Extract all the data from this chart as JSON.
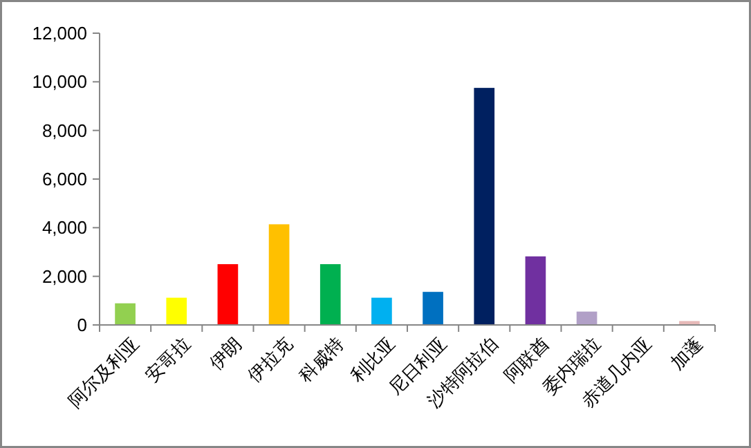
{
  "chart_data": {
    "type": "bar",
    "categories": [
      "阿尔及利亚",
      "安哥拉",
      "伊朗",
      "伊拉克",
      "科威特",
      "利比亚",
      "尼日利亚",
      "沙特阿拉伯",
      "阿联酋",
      "委内瑞拉",
      "赤道几内亚",
      "加蓬"
    ],
    "values": [
      890,
      1120,
      2500,
      4140,
      2500,
      1120,
      1360,
      9750,
      2820,
      550,
      0,
      160
    ],
    "colors": [
      "#92d050",
      "#ffff00",
      "#ff0000",
      "#ffc000",
      "#00b050",
      "#00b0f0",
      "#0070c0",
      "#002060",
      "#7030a0",
      "#b1a0c7",
      "#8db4e2",
      "#e6b9b8"
    ],
    "ylim": [
      0,
      12000
    ],
    "yticks": [
      0,
      {
        "value": 2000,
        "label": "2,000"
      },
      {
        "value": 4000,
        "label": "4,000"
      },
      {
        "value": 6000,
        "label": "6,000"
      },
      {
        "value": 8000,
        "label": "8,000"
      },
      {
        "value": 10000,
        "label": "10,000"
      },
      {
        "value": 12000,
        "label": "12,000"
      }
    ],
    "grid": false
  }
}
